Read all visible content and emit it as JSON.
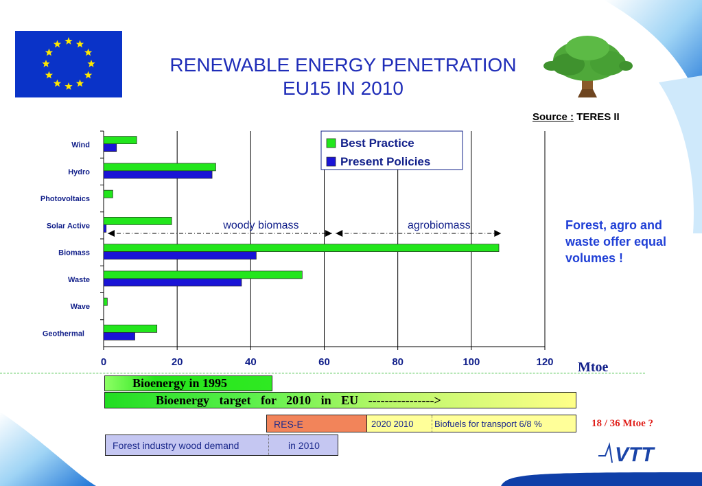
{
  "title_line1": "RENEWABLE ENERGY PENETRATION",
  "title_line2": "EU15 IN 2010",
  "source_label": "Source :",
  "source_value": "TERES II",
  "side_note": "Forest, agro and waste offer equal volumes !",
  "unit_label": "Mtoe",
  "bioenergy_1995": "Bioenergy in 1995",
  "bioenergy_target": "Bioenergy target for 2010 in EU ---------------->",
  "rese_label": "RES-E",
  "transport_year": "2020   2010",
  "transport_label": "Biofuels for transport 6/8 %",
  "mtoe_note": "18  / 36 Mtoe ?",
  "forest_label": "Forest industry wood demand",
  "forest_year": "in 2010",
  "logo_text": "VTT",
  "colors": {
    "best_practice": "#22e61c",
    "present_policies": "#1a14d6",
    "title": "#1f2db8",
    "eu_flag": "#0a33c8",
    "eu_star": "#ffe800"
  },
  "icons": [
    "eu-flag-icon",
    "tree-icon",
    "vtt-logo-icon"
  ],
  "chart_data": {
    "type": "bar",
    "orientation": "horizontal",
    "categories": [
      "Wind",
      "Hydro",
      "Photovoltaics",
      "Solar Active",
      "Biomass",
      "Waste",
      "Wave",
      "Geothermal"
    ],
    "series": [
      {
        "name": "Best Practice",
        "values": [
          9,
          30.5,
          2.5,
          18.5,
          107.5,
          54,
          1,
          14.5
        ]
      },
      {
        "name": "Present Policies",
        "values": [
          3.5,
          29.5,
          0,
          0.7,
          41.5,
          37.5,
          0,
          8.5
        ]
      }
    ],
    "xticks": [
      "0",
      "20",
      "40",
      "60",
      "80",
      "100",
      "120"
    ],
    "xlim": [
      0,
      120
    ],
    "xlabel": "",
    "ylabel": "",
    "grid": "vertical",
    "legend": "top-right",
    "annotations": [
      {
        "text": "woody biomass",
        "x_range": [
          0,
          61
        ]
      },
      {
        "text": "agrobiomass",
        "x_range": [
          62,
          107
        ]
      }
    ]
  }
}
